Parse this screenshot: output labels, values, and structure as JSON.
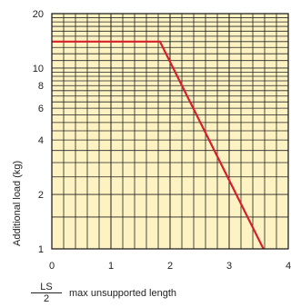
{
  "chart_data": {
    "type": "line",
    "ylabel": "Additional load (kg)",
    "xlabel_fraction": {
      "numerator": "LS",
      "denominator": "2"
    },
    "xlabel_text": "max unsupported length",
    "x_ticks": [
      "0",
      "1",
      "2",
      "3",
      "4"
    ],
    "y_ticks": [
      {
        "value": 1,
        "label": "1"
      },
      {
        "value": 2,
        "label": "2"
      },
      {
        "value": 4,
        "label": "4"
      },
      {
        "value": 6,
        "label": "6"
      },
      {
        "value": 8,
        "label": "8"
      },
      {
        "value": 10,
        "label": "10"
      },
      {
        "value": 20,
        "label": "20"
      }
    ],
    "xlim": [
      0,
      4
    ],
    "ylim": [
      1,
      20
    ],
    "y_scale": "log",
    "grid": true,
    "series": [
      {
        "color": "#d61f2a",
        "x": [
          0,
          1.83,
          3.58
        ],
        "y": [
          14,
          14,
          1
        ]
      }
    ],
    "background_color": "#fdf3c2",
    "grid_color": "#222222"
  }
}
